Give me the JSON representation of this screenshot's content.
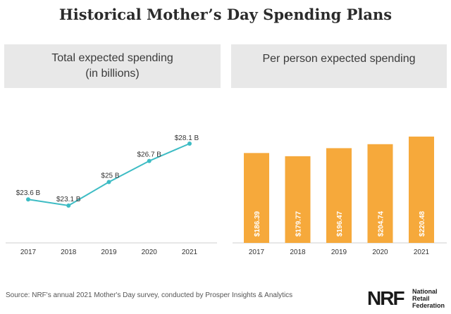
{
  "title": "Historical Mother’s Day Spending Plans",
  "panels": {
    "left_title_line1": "Total expected spending",
    "left_title_line2": "(in billions)",
    "right_title": "Per person expected spending"
  },
  "chart_data": [
    {
      "type": "line",
      "title": "Total expected spending (in billions)",
      "categories": [
        "2017",
        "2018",
        "2019",
        "2020",
        "2021"
      ],
      "values": [
        23.6,
        23.1,
        25,
        26.7,
        28.1
      ],
      "data_labels": [
        "$23.6 B",
        "$23.1 B",
        "$25 B",
        "$26.7 B",
        "$28.1 B"
      ],
      "ylim": [
        20,
        29
      ],
      "color": "#3dbcc4",
      "grid": false
    },
    {
      "type": "bar",
      "title": "Per person expected spending",
      "categories": [
        "2017",
        "2018",
        "2019",
        "2020",
        "2021"
      ],
      "values": [
        186.39,
        179.77,
        196.47,
        204.74,
        220.48
      ],
      "data_labels": [
        "$186.39",
        "$179.77",
        "$196.47",
        "$204.74",
        "$220.48"
      ],
      "ylim": [
        0,
        230
      ],
      "color": "#f6a93b",
      "grid": false
    }
  ],
  "source": "Source: NRF's annual 2021 Mother's Day survey, conducted by Prosper Insights & Analytics",
  "logo": {
    "mark": "NRF",
    "name_lines": [
      "National",
      "Retail",
      "Federation"
    ]
  }
}
